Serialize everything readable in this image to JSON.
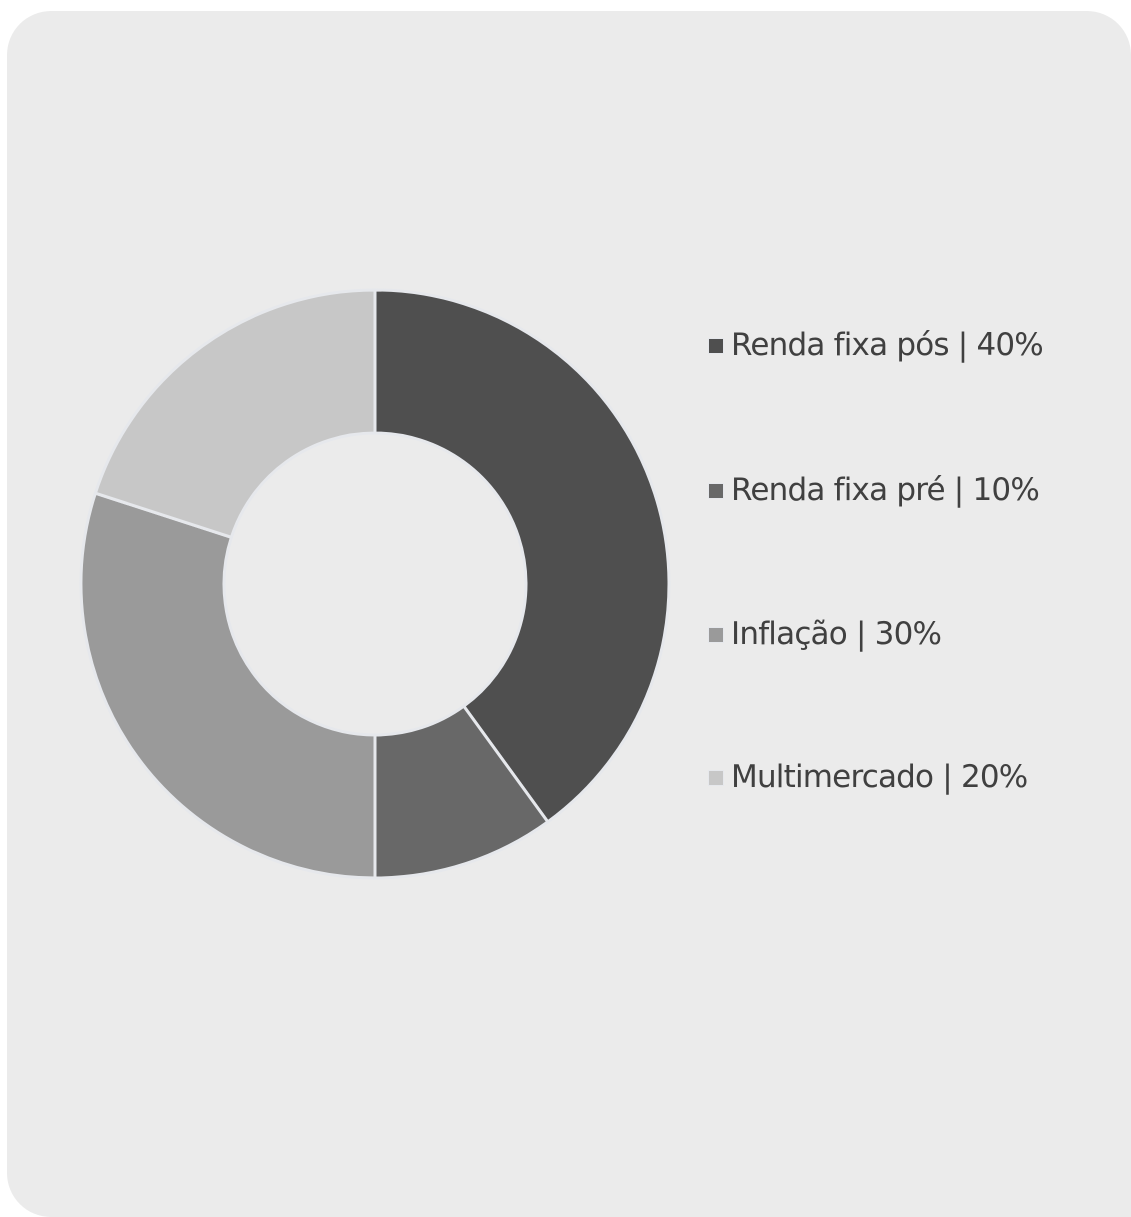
{
  "chart_data": {
    "type": "pie",
    "variant": "donut",
    "title": "",
    "slices": [
      {
        "label": "Renda fixa pós | 40%",
        "name": "Renda fixa pós",
        "value": 40,
        "color": "#4f4f4f"
      },
      {
        "label": "Renda fixa pré | 10%",
        "name": "Renda fixa pré",
        "value": 10,
        "color": "#686868"
      },
      {
        "label": "Inflação | 30%",
        "name": "Inflação",
        "value": 30,
        "color": "#9a9a9a"
      },
      {
        "label": "Multimercado | 20%",
        "name": "Multimercado",
        "value": 20,
        "color": "#c7c7c7"
      }
    ],
    "legend_position": "right"
  },
  "colors": {
    "card_background": "#ebebeb",
    "slice_separator": "#e6e8ec",
    "legend_text": "#404040"
  }
}
